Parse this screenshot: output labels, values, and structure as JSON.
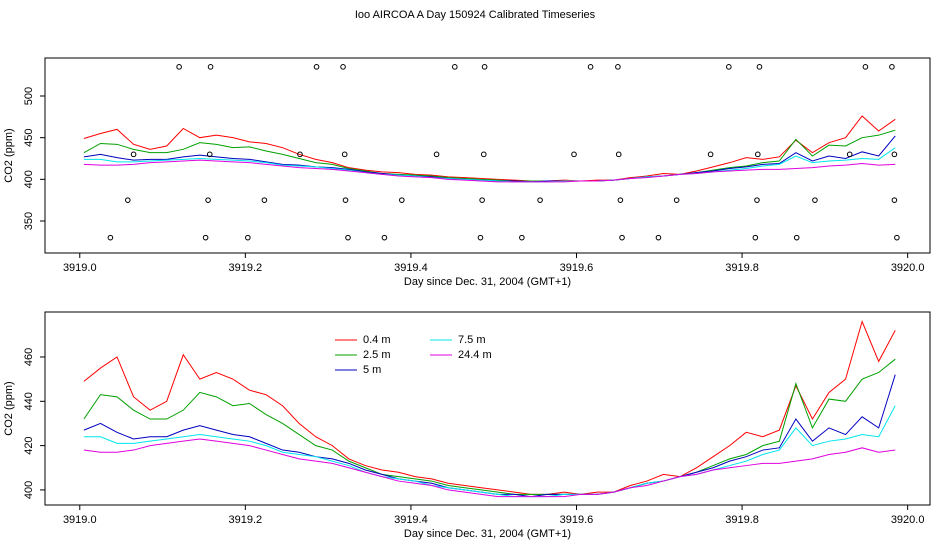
{
  "chart_data": [
    {
      "type": "line",
      "title": "Ioo AIRCOA A  Day 150924  Calibrated Timeseries",
      "x_label": "Day since Dec. 31, 2004 (GMT+1)",
      "y_label": "CO2 (ppm)",
      "xlim": [
        3918.958,
        3920.027
      ],
      "xticks": [
        {
          "value": 3919.0,
          "label": "3919.0"
        },
        {
          "value": 3919.2,
          "label": "3919.2"
        },
        {
          "value": 3919.4,
          "label": "3919.4"
        },
        {
          "value": 3919.6,
          "label": "3919.6"
        },
        {
          "value": 3919.8,
          "label": "3919.8"
        },
        {
          "value": 3920.0,
          "label": "3920.0"
        }
      ],
      "ylim": [
        311.6,
        545.6
      ],
      "yticks": [
        350,
        400,
        450,
        500
      ],
      "x": [
        3919.005,
        3919.025,
        3919.045,
        3919.065,
        3919.085,
        3919.105,
        3919.125,
        3919.145,
        3919.165,
        3919.185,
        3919.205,
        3919.225,
        3919.245,
        3919.265,
        3919.285,
        3919.305,
        3919.325,
        3919.345,
        3919.365,
        3919.385,
        3919.405,
        3919.425,
        3919.445,
        3919.465,
        3919.485,
        3919.505,
        3919.525,
        3919.545,
        3919.565,
        3919.585,
        3919.605,
        3919.625,
        3919.645,
        3919.665,
        3919.685,
        3919.705,
        3919.725,
        3919.745,
        3919.765,
        3919.785,
        3919.805,
        3919.825,
        3919.845,
        3919.865,
        3919.885,
        3919.905,
        3919.925,
        3919.945,
        3919.965,
        3919.985
      ],
      "series": [
        {
          "color": "#ff0000",
          "values": [
            449,
            455,
            460,
            442,
            436,
            440,
            461,
            450,
            453,
            450,
            445,
            443,
            438,
            430,
            424,
            420,
            414,
            411,
            409,
            408,
            406,
            405,
            403,
            402,
            401,
            400,
            399,
            398,
            398,
            399,
            398,
            399,
            399,
            402,
            404,
            407,
            406,
            410,
            415,
            420,
            426,
            424,
            427,
            447,
            432,
            444,
            450,
            476,
            458,
            472
          ]
        },
        {
          "color": "#00a000",
          "values": [
            432,
            443,
            442,
            436,
            432,
            432,
            436,
            444,
            442,
            438,
            439,
            434,
            430,
            425,
            420,
            418,
            413,
            410,
            407,
            406,
            405,
            404,
            402,
            401,
            400,
            399,
            398,
            398,
            398,
            398,
            398,
            398,
            399,
            401,
            403,
            404,
            406,
            408,
            411,
            414,
            416,
            420,
            422,
            448,
            428,
            441,
            440,
            450,
            453,
            459
          ]
        },
        {
          "color": "#0000c0",
          "values": [
            427,
            430,
            426,
            423,
            424,
            424,
            427,
            429,
            427,
            425,
            424,
            421,
            418,
            417,
            415,
            414,
            412,
            409,
            407,
            405,
            404,
            403,
            401,
            400,
            399,
            398,
            398,
            397,
            398,
            398,
            398,
            398,
            399,
            401,
            403,
            404,
            406,
            408,
            410,
            413,
            415,
            418,
            419,
            432,
            422,
            428,
            425,
            433,
            428,
            452
          ]
        },
        {
          "color": "#00e5ee",
          "values": [
            424,
            424,
            421,
            421,
            422,
            423,
            424,
            425,
            424,
            423,
            422,
            420,
            417,
            416,
            415,
            413,
            411,
            408,
            406,
            405,
            404,
            402,
            401,
            400,
            399,
            398,
            397,
            397,
            397,
            398,
            398,
            398,
            399,
            401,
            403,
            404,
            406,
            407,
            409,
            411,
            413,
            416,
            418,
            428,
            420,
            422,
            423,
            425,
            424,
            438
          ]
        },
        {
          "color": "#e000e0",
          "values": [
            418,
            417,
            417,
            418,
            420,
            421,
            422,
            423,
            422,
            421,
            420,
            418,
            416,
            414,
            413,
            412,
            410,
            408,
            406,
            404,
            403,
            402,
            400,
            399,
            398,
            397,
            397,
            397,
            397,
            397,
            398,
            398,
            399,
            401,
            402,
            404,
            406,
            407,
            409,
            410,
            411,
            412,
            412,
            413,
            414,
            416,
            417,
            419,
            417,
            418
          ]
        }
      ],
      "points": {
        "x": [
          3919.12,
          3919.158,
          3919.286,
          3919.318,
          3919.453,
          3919.489,
          3919.617,
          3919.65,
          3919.784,
          3919.821,
          3919.949,
          3919.981,
          3919.065,
          3919.157,
          3919.266,
          3919.32,
          3919.431,
          3919.488,
          3919.597,
          3919.651,
          3919.762,
          3919.819,
          3919.93,
          3919.984,
          3919.058,
          3919.155,
          3919.223,
          3919.321,
          3919.389,
          3919.486,
          3919.556,
          3919.653,
          3919.721,
          3919.818,
          3919.888,
          3919.984,
          3919.037,
          3919.152,
          3919.203,
          3919.324,
          3919.368,
          3919.484,
          3919.534,
          3919.655,
          3919.699,
          3919.816,
          3919.866,
          3919.987
        ],
        "y": [
          535,
          535,
          535,
          535,
          535,
          535,
          535,
          535,
          535,
          535,
          535,
          535,
          430,
          430,
          430,
          430,
          430,
          430,
          430,
          430,
          430,
          430,
          430,
          430,
          375,
          375,
          375,
          375,
          375,
          375,
          375,
          375,
          375,
          375,
          375,
          375,
          330,
          330,
          330,
          330,
          330,
          330,
          330,
          330,
          330,
          330,
          330,
          330
        ]
      }
    },
    {
      "type": "line",
      "x_label": "Day since Dec. 31, 2004 (GMT+1)",
      "y_label": "CO2 (ppm)",
      "xlim": [
        3918.958,
        3920.027
      ],
      "xticks": [
        {
          "value": 3919.0,
          "label": "3919.0"
        },
        {
          "value": 3919.2,
          "label": "3919.2"
        },
        {
          "value": 3919.4,
          "label": "3919.4"
        },
        {
          "value": 3919.6,
          "label": "3919.6"
        },
        {
          "value": 3919.8,
          "label": "3919.8"
        },
        {
          "value": 3920.0,
          "label": "3920.0"
        }
      ],
      "ylim": [
        393.2,
        480.3
      ],
      "yticks": [
        400,
        420,
        440,
        460
      ],
      "legend": "top",
      "x": [
        3919.005,
        3919.025,
        3919.045,
        3919.065,
        3919.085,
        3919.105,
        3919.125,
        3919.145,
        3919.165,
        3919.185,
        3919.205,
        3919.225,
        3919.245,
        3919.265,
        3919.285,
        3919.305,
        3919.325,
        3919.345,
        3919.365,
        3919.385,
        3919.405,
        3919.425,
        3919.445,
        3919.465,
        3919.485,
        3919.505,
        3919.525,
        3919.545,
        3919.565,
        3919.585,
        3919.605,
        3919.625,
        3919.645,
        3919.665,
        3919.685,
        3919.705,
        3919.725,
        3919.745,
        3919.765,
        3919.785,
        3919.805,
        3919.825,
        3919.845,
        3919.865,
        3919.885,
        3919.905,
        3919.925,
        3919.945,
        3919.965,
        3919.985
      ],
      "series": [
        {
          "name": "0.4 m",
          "color": "#ff0000",
          "values": [
            449,
            455,
            460,
            442,
            436,
            440,
            461,
            450,
            453,
            450,
            445,
            443,
            438,
            430,
            424,
            420,
            414,
            411,
            409,
            408,
            406,
            405,
            403,
            402,
            401,
            400,
            399,
            398,
            398,
            399,
            398,
            399,
            399,
            402,
            404,
            407,
            406,
            410,
            415,
            420,
            426,
            424,
            427,
            447,
            432,
            444,
            450,
            476,
            458,
            472
          ]
        },
        {
          "name": "2.5 m",
          "color": "#00a000",
          "values": [
            432,
            443,
            442,
            436,
            432,
            432,
            436,
            444,
            442,
            438,
            439,
            434,
            430,
            425,
            420,
            418,
            413,
            410,
            407,
            406,
            405,
            404,
            402,
            401,
            400,
            399,
            398,
            398,
            398,
            398,
            398,
            398,
            399,
            401,
            403,
            404,
            406,
            408,
            411,
            414,
            416,
            420,
            422,
            448,
            428,
            441,
            440,
            450,
            453,
            459
          ]
        },
        {
          "name": "5 m",
          "color": "#0000c0",
          "values": [
            427,
            430,
            426,
            423,
            424,
            424,
            427,
            429,
            427,
            425,
            424,
            421,
            418,
            417,
            415,
            414,
            412,
            409,
            407,
            405,
            404,
            403,
            401,
            400,
            399,
            398,
            398,
            397,
            398,
            398,
            398,
            398,
            399,
            401,
            403,
            404,
            406,
            408,
            410,
            413,
            415,
            418,
            419,
            432,
            422,
            428,
            425,
            433,
            428,
            452
          ]
        },
        {
          "name": "7.5 m",
          "color": "#00e5ee",
          "values": [
            424,
            424,
            421,
            421,
            422,
            423,
            424,
            425,
            424,
            423,
            422,
            420,
            417,
            416,
            415,
            413,
            411,
            408,
            406,
            405,
            404,
            402,
            401,
            400,
            399,
            398,
            397,
            397,
            397,
            398,
            398,
            398,
            399,
            401,
            403,
            404,
            406,
            407,
            409,
            411,
            413,
            416,
            418,
            428,
            420,
            422,
            423,
            425,
            424,
            438
          ]
        },
        {
          "name": "24.4 m",
          "color": "#e000e0",
          "values": [
            418,
            417,
            417,
            418,
            420,
            421,
            422,
            423,
            422,
            421,
            420,
            418,
            416,
            414,
            413,
            412,
            410,
            408,
            406,
            404,
            403,
            402,
            400,
            399,
            398,
            397,
            397,
            397,
            397,
            397,
            398,
            398,
            399,
            401,
            402,
            404,
            406,
            407,
            409,
            410,
            411,
            412,
            412,
            413,
            414,
            416,
            417,
            419,
            417,
            418
          ]
        }
      ]
    }
  ]
}
